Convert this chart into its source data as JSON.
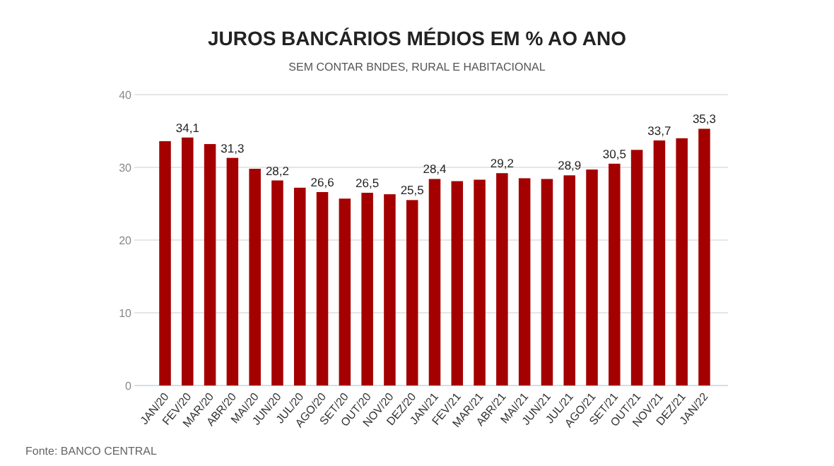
{
  "chart_data": {
    "type": "bar",
    "title": "JUROS BANCÁRIOS MÉDIOS EM % AO ANO",
    "subtitle": "SEM CONTAR BNDES, RURAL E HABITACIONAL",
    "categories": [
      "JAN/20",
      "FEV/20",
      "MAR/20",
      "ABR/20",
      "MAI/20",
      "JUN/20",
      "JUL/20",
      "AGO/20",
      "SET/20",
      "OUT/20",
      "NOV/20",
      "DEZ/20",
      "JAN/21",
      "FEV/21",
      "MAR/21",
      "ABR/21",
      "MAI/21",
      "JUN/21",
      "JUL/21",
      "AGO/21",
      "SET/21",
      "OUT/21",
      "NOV/21",
      "DEZ/21",
      "JAN/22"
    ],
    "values": [
      33.6,
      34.1,
      33.2,
      31.3,
      29.8,
      28.2,
      27.2,
      26.6,
      25.7,
      26.5,
      26.3,
      25.5,
      28.4,
      28.1,
      28.3,
      29.2,
      28.5,
      28.4,
      28.9,
      29.7,
      30.5,
      32.4,
      33.7,
      34.0,
      35.3
    ],
    "value_labels": [
      null,
      "34,1",
      null,
      "31,3",
      null,
      "28,2",
      null,
      "26,6",
      null,
      "26,5",
      null,
      "25,5",
      "28,4",
      null,
      null,
      "29,2",
      null,
      null,
      "28,9",
      null,
      "30,5",
      null,
      "33,7",
      null,
      "35,3"
    ],
    "color": "#a50000",
    "ylim": [
      0,
      40
    ],
    "yticks": [
      0,
      10,
      20,
      30,
      40
    ],
    "grid": "y",
    "annotations": [
      "Fonte: BANCO CENTRAL"
    ]
  }
}
